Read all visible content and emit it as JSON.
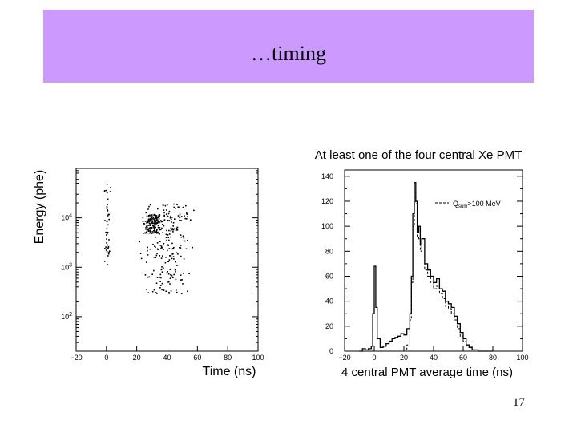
{
  "slide": {
    "title": "…timing",
    "page_number": "17",
    "title_bar_color": "#cc99ff"
  },
  "chart_data": [
    {
      "type": "scatter",
      "title": "",
      "xlabel": "Time (ns)",
      "ylabel": "Energy (phe)",
      "x_ticks": [
        "−20",
        "0",
        "20",
        "40",
        "60",
        "80",
        "100"
      ],
      "y_ticks": [
        "10^2",
        "10^3",
        "10^4"
      ],
      "xlim": [
        -20,
        100
      ],
      "y_scale": "log",
      "ylim": [
        20,
        100000
      ],
      "clusters": [
        {
          "name": "",
          "x_center": 0,
          "y_range": [
            1000,
            50000
          ],
          "x_spread": 1.5,
          "points": 45
        },
        {
          "name": "",
          "x_center": 30,
          "y_range": [
            5000,
            12000
          ],
          "x_spread": 4,
          "points": 160
        },
        {
          "name": "",
          "x_center": 40,
          "y_range": [
            300,
            20000
          ],
          "x_spread": 12,
          "points": 220
        }
      ]
    },
    {
      "type": "line",
      "title": "At least one of the four central Xe PMT",
      "xlabel": "4 central PMT average time (ns)",
      "ylabel": "",
      "x_ticks": [
        "−20",
        "0",
        "20",
        "40",
        "60",
        "80",
        "100"
      ],
      "y_ticks": [
        "0",
        "20",
        "40",
        "60",
        "80",
        "100",
        "120",
        "140"
      ],
      "xlim": [
        -20,
        100
      ],
      "ylim": [
        0,
        145
      ],
      "legend": {
        "label_main": "Q",
        "label_sub": "sum",
        "label_rest": ">100 MeV",
        "placement": "top-right"
      },
      "series": [
        {
          "name": "",
          "style": "solid",
          "x": [
            -10,
            -8,
            -6,
            -4,
            -2,
            -1,
            0,
            1,
            2,
            4,
            6,
            8,
            10,
            12,
            14,
            16,
            18,
            20,
            22,
            24,
            25,
            26,
            27,
            28,
            29,
            30,
            31,
            32,
            34,
            36,
            38,
            40,
            42,
            44,
            46,
            48,
            50,
            52,
            54,
            56,
            58,
            60,
            62,
            64,
            66,
            70,
            80
          ],
          "y": [
            0,
            2,
            1,
            2,
            4,
            30,
            68,
            35,
            10,
            3,
            4,
            6,
            8,
            10,
            11,
            12,
            14,
            13,
            18,
            30,
            60,
            110,
            135,
            120,
            95,
            100,
            85,
            90,
            70,
            65,
            60,
            55,
            58,
            50,
            48,
            40,
            38,
            35,
            28,
            22,
            15,
            10,
            5,
            3,
            1,
            0,
            0
          ]
        },
        {
          "name": "",
          "style": "dashed",
          "x": [
            20,
            22,
            24,
            25,
            26,
            27,
            28,
            29,
            30,
            31,
            32,
            34,
            36,
            38,
            40,
            42,
            44,
            46,
            48,
            50,
            52,
            54,
            56,
            58,
            60,
            62,
            66,
            70
          ],
          "y": [
            0,
            5,
            25,
            55,
            100,
            128,
            118,
            92,
            90,
            80,
            85,
            65,
            60,
            55,
            50,
            52,
            46,
            42,
            36,
            34,
            30,
            25,
            18,
            12,
            8,
            4,
            1,
            0
          ]
        }
      ]
    }
  ]
}
